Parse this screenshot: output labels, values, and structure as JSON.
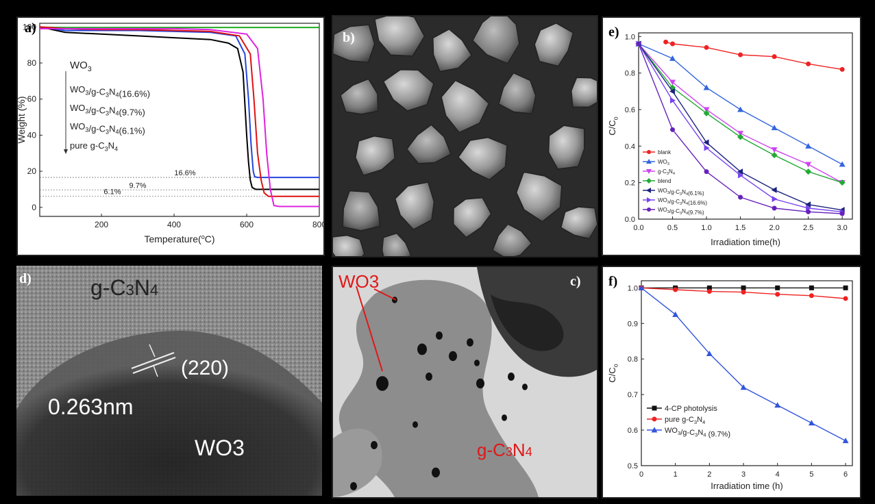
{
  "panels": {
    "a": {
      "label": "a)"
    },
    "b": {
      "label": "b)"
    },
    "c": {
      "label": "c)",
      "wo3": "WO3",
      "gcn_main": "g-C",
      "gcn_sub1": "3",
      "gcn_N": "N",
      "gcn_sub2": "4"
    },
    "d": {
      "label": "d)",
      "gcn_main": "g-C",
      "gcn_sub1": "3",
      "gcn_N": "N",
      "gcn_sub2": "4",
      "plane": "(220)",
      "spacing": "0.263nm",
      "wo3": "WO3"
    },
    "e": {
      "label": "e)"
    },
    "f": {
      "label": "f)"
    }
  },
  "chart_data": [
    {
      "id": "a",
      "type": "line",
      "xlabel": "Temperature(°C)",
      "ylabel": "Weight (%)",
      "xlim": [
        30,
        800
      ],
      "ylim": [
        -5,
        102
      ],
      "xticks": [
        200,
        400,
        600,
        800
      ],
      "yticks": [
        0,
        20,
        40,
        60,
        80,
        100
      ],
      "legend_arrow_labels": [
        "WO3",
        "WO3/g-C3N4(16.6%)",
        "WO3/g-C3N4(9.7%)",
        "WO3/g-C3N4(6.1%)",
        "pure g-C3N4"
      ],
      "reference_lines": [
        {
          "label": "16.6%",
          "y": 16.6
        },
        {
          "label": "9.7%",
          "y": 9.7
        },
        {
          "label": "6.1%",
          "y": 6.1
        }
      ],
      "series": [
        {
          "color": "#22aa22",
          "x": [
            30,
            100,
            200,
            300,
            400,
            500,
            600,
            700,
            800
          ],
          "y": [
            99.8,
            99.7,
            99.7,
            99.7,
            99.7,
            99.7,
            99.7,
            99.7,
            99.7
          ]
        },
        {
          "color": "#000000",
          "x": [
            30,
            100,
            200,
            300,
            400,
            500,
            550,
            575,
            590,
            600,
            605,
            610,
            615,
            625,
            700,
            800
          ],
          "y": [
            100,
            97,
            96,
            95,
            94,
            93,
            91,
            88,
            75,
            40,
            25,
            15,
            11,
            10,
            10,
            10
          ]
        },
        {
          "color": "#2244dd",
          "x": [
            30,
            100,
            200,
            300,
            400,
            500,
            570,
            595,
            605,
            612,
            618,
            622,
            630,
            700,
            800
          ],
          "y": [
            100,
            98,
            98,
            98,
            97.5,
            97,
            95,
            85,
            60,
            35,
            20,
            17,
            16.6,
            16.6,
            16.6
          ]
        },
        {
          "color": "#dd1111",
          "x": [
            30,
            100,
            200,
            300,
            400,
            500,
            580,
            610,
            620,
            630,
            640,
            648,
            660,
            700,
            800
          ],
          "y": [
            100,
            99,
            98.5,
            98.5,
            98,
            97.5,
            95,
            85,
            60,
            30,
            15,
            8,
            6.1,
            6.1,
            6.1
          ]
        },
        {
          "color": "#dd22dd",
          "x": [
            30,
            100,
            200,
            300,
            400,
            500,
            600,
            630,
            645,
            655,
            665,
            675,
            690,
            800
          ],
          "y": [
            99,
            99,
            99,
            99,
            99,
            98.5,
            96,
            88,
            60,
            30,
            10,
            1,
            0.5,
            0.5
          ]
        }
      ]
    },
    {
      "id": "e",
      "type": "line",
      "xlabel": "Irradiation time(h)",
      "ylabel": "C/Co",
      "xlim": [
        0,
        3.15
      ],
      "ylim": [
        0,
        1.02
      ],
      "xticks": [
        0.0,
        0.5,
        1.0,
        1.5,
        2.0,
        2.5,
        3.0
      ],
      "yticks": [
        0.0,
        0.2,
        0.4,
        0.6,
        0.8,
        1.0
      ],
      "legend_position": "lower-left",
      "series": [
        {
          "name": "blank",
          "color": "#ee2222",
          "marker": "circle",
          "x": [
            0.4,
            0.5,
            1.0,
            1.5,
            2.0,
            2.5,
            3.0
          ],
          "y": [
            0.97,
            0.96,
            0.94,
            0.9,
            0.89,
            0.85,
            0.82
          ]
        },
        {
          "name": "WO3",
          "color": "#3366dd",
          "marker": "triangle",
          "x": [
            0,
            0.5,
            1.0,
            1.5,
            2.0,
            2.5,
            3.0
          ],
          "y": [
            0.96,
            0.88,
            0.72,
            0.6,
            0.5,
            0.4,
            0.3
          ]
        },
        {
          "name": "g-C3N4",
          "color": "#cc44ee",
          "marker": "triangle-down",
          "x": [
            0,
            0.5,
            1.0,
            1.5,
            2.0,
            2.5,
            3.0
          ],
          "y": [
            0.96,
            0.75,
            0.6,
            0.47,
            0.38,
            0.3,
            0.2
          ]
        },
        {
          "name": "blend",
          "color": "#22aa33",
          "marker": "diamond",
          "x": [
            0,
            0.5,
            1.0,
            1.5,
            2.0,
            2.5,
            3.0
          ],
          "y": [
            0.96,
            0.72,
            0.58,
            0.45,
            0.35,
            0.26,
            0.2
          ]
        },
        {
          "name": "WO3/g-C3N4(6.1%)",
          "color": "#1a237e",
          "marker": "triangle-left",
          "x": [
            0,
            0.5,
            1.0,
            1.5,
            2.0,
            2.5,
            3.0
          ],
          "y": [
            0.96,
            0.7,
            0.42,
            0.26,
            0.16,
            0.08,
            0.05
          ]
        },
        {
          "name": "WO3/g-C3N4(16.6%)",
          "color": "#7744ee",
          "marker": "triangle-right",
          "x": [
            0,
            0.5,
            1.0,
            1.5,
            2.0,
            2.5,
            3.0
          ],
          "y": [
            0.96,
            0.65,
            0.39,
            0.24,
            0.11,
            0.06,
            0.04
          ]
        },
        {
          "name": "WO3/g-C3N4(9.7%)",
          "color": "#6622bb",
          "marker": "circle",
          "x": [
            0,
            0.5,
            1.0,
            1.5,
            2.0,
            2.5,
            3.0
          ],
          "y": [
            0.96,
            0.49,
            0.26,
            0.12,
            0.06,
            0.04,
            0.03
          ]
        }
      ]
    },
    {
      "id": "f",
      "type": "line",
      "xlabel": "Irradiation time (h)",
      "ylabel": "C/Co",
      "xlim": [
        0,
        6.2
      ],
      "ylim": [
        0.5,
        1.02
      ],
      "xticks": [
        0,
        1,
        2,
        3,
        4,
        5,
        6
      ],
      "yticks": [
        0.5,
        0.6,
        0.7,
        0.8,
        0.9,
        1.0
      ],
      "legend_position": "lower-left",
      "series": [
        {
          "name": "4-CP photolysis",
          "color": "#111111",
          "marker": "square",
          "x": [
            0,
            1,
            2,
            3,
            4,
            5,
            6
          ],
          "y": [
            1.0,
            1.0,
            1.0,
            1.0,
            1.0,
            1.0,
            1.0
          ]
        },
        {
          "name": "pure g-C3N4",
          "color": "#ee2222",
          "marker": "circle",
          "x": [
            0,
            1,
            2,
            3,
            4,
            5,
            6
          ],
          "y": [
            1.0,
            0.995,
            0.99,
            0.988,
            0.982,
            0.978,
            0.97
          ]
        },
        {
          "name": "WO3/g-C3N4 (9.7%)",
          "color": "#3355dd",
          "marker": "triangle",
          "x": [
            0,
            1,
            2,
            3,
            4,
            5,
            6
          ],
          "y": [
            1.0,
            0.925,
            0.815,
            0.72,
            0.67,
            0.62,
            0.57
          ]
        }
      ]
    }
  ]
}
